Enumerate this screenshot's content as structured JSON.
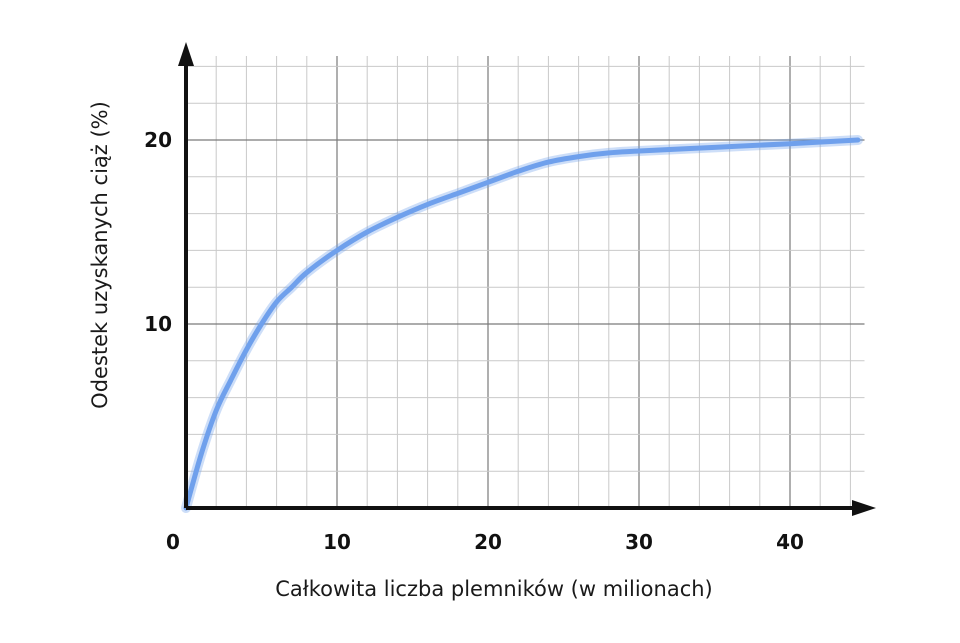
{
  "chart_data": {
    "type": "line",
    "xlabel": "Całkowita liczba plemników (w milionach)",
    "ylabel": "Odestek uzyskanych ciąż (%)",
    "xlim": [
      0,
      45
    ],
    "ylim": [
      0,
      25
    ],
    "x_ticks": [
      "0",
      "10",
      "20",
      "30",
      "40"
    ],
    "y_ticks": [
      "10",
      "20"
    ],
    "grid": true,
    "series": [
      {
        "color": "#6fa0ec",
        "x": [
          0,
          1,
          2,
          3,
          4,
          5,
          6,
          7,
          8,
          10,
          12,
          14,
          16,
          18,
          20,
          22,
          24,
          26,
          28,
          30,
          35,
          40,
          44.5
        ],
        "y": [
          0,
          2.9,
          5.3,
          7.0,
          8.6,
          10.0,
          11.2,
          12.0,
          12.8,
          14.0,
          15.0,
          15.8,
          16.5,
          17.1,
          17.7,
          18.3,
          18.8,
          19.1,
          19.3,
          19.4,
          19.6,
          19.8,
          20.0
        ]
      }
    ]
  }
}
